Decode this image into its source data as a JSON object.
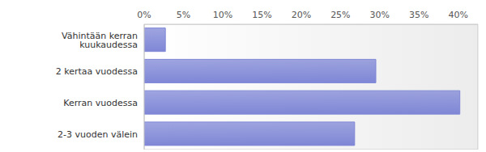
{
  "chart_data": {
    "type": "bar",
    "orientation": "horizontal",
    "categories": [
      "Vähintään kerran kuukaudessa",
      "2 kertaa vuodessa",
      "Kerran vuodessa",
      "2-3 vuoden välein"
    ],
    "values": [
      2.7,
      29.5,
      40.2,
      26.8
    ],
    "color": "#7f87d6",
    "xlim": [
      0,
      42.5
    ],
    "xticks": [
      {
        "value": 0,
        "label": "0%"
      },
      {
        "value": 5,
        "label": "5%"
      },
      {
        "value": 10,
        "label": "10%"
      },
      {
        "value": 15,
        "label": "15%"
      },
      {
        "value": 20,
        "label": "20%"
      },
      {
        "value": 25,
        "label": "25%"
      },
      {
        "value": 30,
        "label": "30%"
      },
      {
        "value": 35,
        "label": "35%"
      },
      {
        "value": 40,
        "label": "40%"
      }
    ],
    "grid": true
  }
}
